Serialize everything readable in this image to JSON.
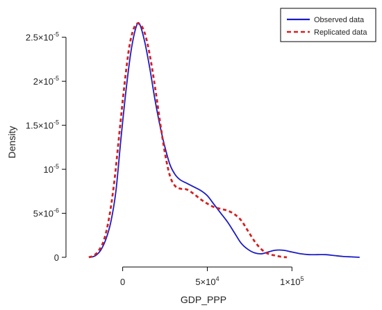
{
  "chart_data": {
    "type": "line",
    "title": "",
    "xlabel": "GDP_PPP",
    "ylabel": "Density",
    "xlim": [
      -22000,
      145000
    ],
    "ylim": [
      0,
      2.75e-05
    ],
    "x_ticks": [
      {
        "value": 0,
        "label": "0"
      },
      {
        "value": 50000,
        "mant": "5",
        "exp": "4"
      },
      {
        "value": 100000,
        "mant": "1",
        "exp": "5"
      }
    ],
    "y_ticks": [
      {
        "value": 0,
        "label": "0"
      },
      {
        "value": 5e-06,
        "mant": "5",
        "exp": "-6"
      },
      {
        "value": 1e-05,
        "mant": "",
        "exp": "-5"
      },
      {
        "value": 1.5e-05,
        "mant": "1.5",
        "exp": "-5"
      },
      {
        "value": 2e-05,
        "mant": "2",
        "exp": "-5"
      },
      {
        "value": 2.5e-05,
        "mant": "2.5",
        "exp": "-5"
      }
    ],
    "grid": false,
    "legend": "top-right",
    "series": [
      {
        "name": "Observed data",
        "color": "#1a1ac8",
        "style": "solid",
        "x": [
          -19000,
          -16000,
          -13000,
          -10000,
          -7000,
          -4000,
          -1000,
          2000,
          5000,
          8000,
          10000,
          13000,
          16000,
          19000,
          22000,
          25000,
          28000,
          31000,
          34000,
          38000,
          42000,
          46000,
          50000,
          54000,
          58000,
          62000,
          66000,
          70000,
          74000,
          78000,
          82000,
          86000,
          90000,
          95000,
          100000,
          105000,
          110000,
          115000,
          120000,
          125000,
          130000,
          135000,
          140000
        ],
        "y": [
          0,
          2e-07,
          8e-07,
          2e-06,
          4e-06,
          7.5e-06,
          1.35e-05,
          1.9e-05,
          2.35e-05,
          2.62e-05,
          2.65e-05,
          2.45e-05,
          2.15e-05,
          1.8e-05,
          1.5e-05,
          1.25e-05,
          1.05e-05,
          9.4e-06,
          8.8e-06,
          8.4e-06,
          8e-06,
          7.6e-06,
          7e-06,
          6e-06,
          5e-06,
          4e-06,
          2.8e-06,
          1.6e-06,
          9e-07,
          5e-07,
          4e-07,
          6e-07,
          8e-07,
          8e-07,
          6e-07,
          4e-07,
          3e-07,
          3e-07,
          3e-07,
          2e-07,
          1e-07,
          5e-08,
          0
        ]
      },
      {
        "name": "Replicated data",
        "color": "#d42020",
        "style": "dashed",
        "x": [
          -20000,
          -17000,
          -14000,
          -11000,
          -8000,
          -5000,
          -2000,
          1000,
          4000,
          7000,
          10000,
          13000,
          16000,
          19000,
          22000,
          25000,
          28000,
          31000,
          34000,
          38000,
          42000,
          46000,
          50000,
          54000,
          58000,
          62000,
          66000,
          70000,
          74000,
          78000,
          82000,
          86000,
          90000,
          94000,
          97000
        ],
        "y": [
          0,
          2e-07,
          8e-07,
          2e-06,
          4.5e-06,
          8.5e-06,
          1.4e-05,
          1.95e-05,
          2.4e-05,
          2.62e-05,
          2.65e-05,
          2.55e-05,
          2.3e-05,
          1.95e-05,
          1.55e-05,
          1.18e-05,
          9.2e-06,
          8.1e-06,
          7.8e-06,
          7.7e-06,
          7.2e-06,
          6.6e-06,
          6.1e-06,
          5.7e-06,
          5.5e-06,
          5.3e-06,
          4.9e-06,
          4.2e-06,
          3e-06,
          1.8e-06,
          9e-07,
          4e-07,
          2e-07,
          5e-08,
          0
        ]
      }
    ]
  }
}
